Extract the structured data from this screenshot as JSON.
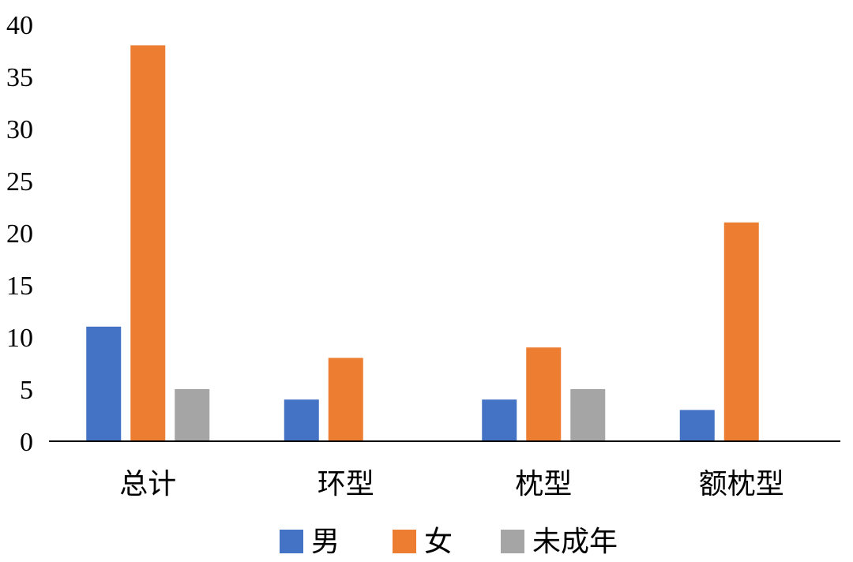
{
  "chart_data": {
    "type": "bar",
    "categories": [
      "总计",
      "环型",
      "枕型",
      "额枕型"
    ],
    "series": [
      {
        "name": "男",
        "values": [
          11,
          4,
          4,
          3
        ],
        "color": "#4472c4"
      },
      {
        "name": "女",
        "values": [
          38,
          8,
          9,
          21
        ],
        "color": "#ed7d31"
      },
      {
        "name": "未成年",
        "values": [
          5,
          0,
          5,
          0
        ],
        "color": "#a5a5a5"
      }
    ],
    "ylim": [
      0,
      40
    ],
    "yticks": [
      "0",
      "5",
      "10",
      "15",
      "20",
      "25",
      "30",
      "35",
      "40"
    ],
    "grid": false,
    "legend_position": "bottom"
  }
}
